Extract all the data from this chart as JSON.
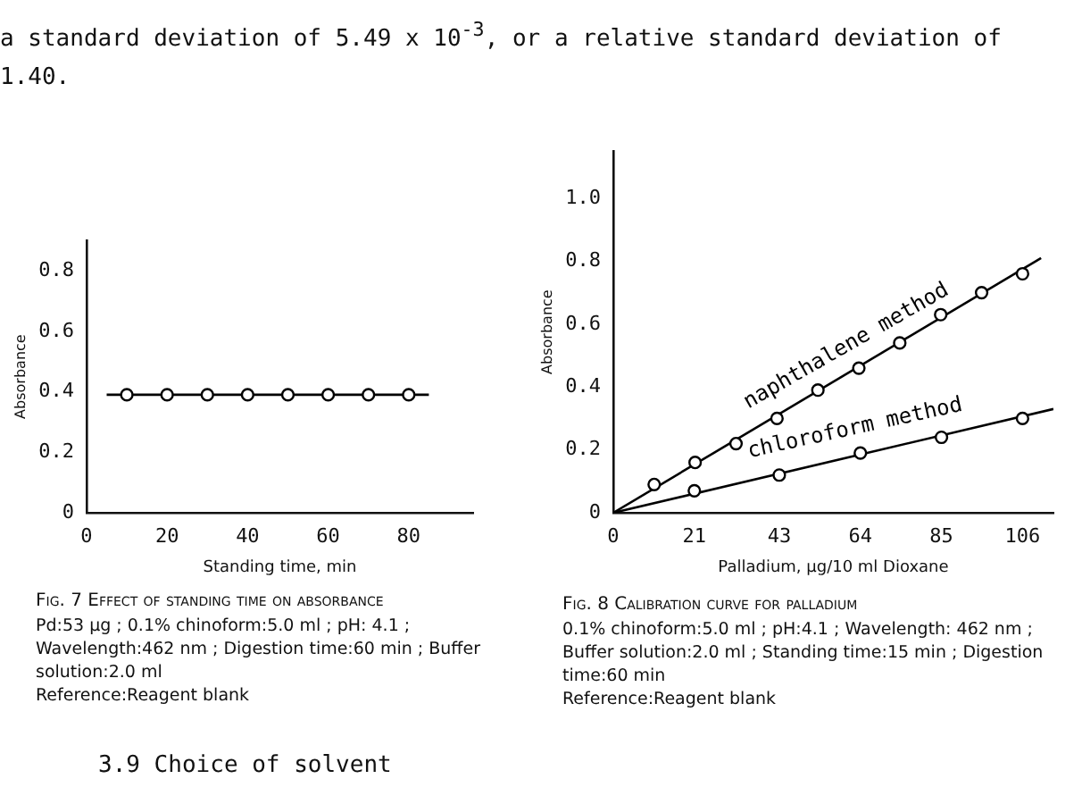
{
  "chart_data": [
    {
      "type": "scatter",
      "title": "Fig. 7 Effect of standing time on absorbance",
      "subtitle": "Pd:53 μg ; 0.1% chinoform:5.0 ml ; pH: 4.1 ; Wavelength:462 nm ; Digestion time:60 min ; Buffer solution:2.0 ml\nReference:Reagent blank",
      "xlabel": "Standing time, min",
      "ylabel": "Absorbance",
      "annotations": [
        "a standard deviation of 5.49 x 10$^{-3}$, or a relative standard deviation of 1.40.",
        "3.9 Choice of solvent"
      ],
      "xlim": [
        0,
        96
      ],
      "xticks": [
        0,
        20,
        40,
        60,
        80
      ],
      "ylim": [
        0,
        0.9
      ],
      "yticks": [
        0,
        0.2,
        0.4,
        0.6,
        0.8
      ],
      "grid": false,
      "legend": false,
      "marker": "circle",
      "series": [
        {
          "type": "line",
          "color": "#000000",
          "marker": "none",
          "x": [
            5,
            85
          ],
          "values": [
            0.39,
            0.39
          ]
        },
        {
          "type": "scatter",
          "color": "#000000",
          "x": [
            10,
            20,
            30,
            40,
            50,
            60,
            70,
            80
          ],
          "values": [
            0.39,
            0.39,
            0.39,
            0.39,
            0.39,
            0.39,
            0.39,
            0.39
          ]
        }
      ]
    },
    {
      "type": "scatter",
      "title": "Fig. 8 Calibration curve for palladium",
      "subtitle": "0.1% chinoform:5.0 ml ; pH:4.1 ; Wavelength: 462 nm ; Buffer solution:2.0 ml ; Standing time:15 min ; Digestion time:60 min\nReference:Reagent blank",
      "xlabel": "Palladium, μg/10 ml Dioxane",
      "ylabel": "Absorbance",
      "xlim": [
        0,
        114
      ],
      "xticks": [
        0,
        21,
        43,
        64,
        85,
        106
      ],
      "ylim": [
        0,
        1.15
      ],
      "yticks": [
        0,
        0.2,
        0.4,
        0.6,
        0.8,
        {
          "value": 1,
          "label": "1.0"
        }
      ],
      "grid": false,
      "legend": false,
      "marker": "circle",
      "series": [
        {
          "type": "line",
          "color": "#000000",
          "marker": "none",
          "x": [
            0,
            110.8
          ],
          "values": [
            0,
            0.81
          ]
        },
        {
          "type": "line",
          "color": "#000000",
          "marker": "none",
          "x": [
            0,
            114
          ],
          "values": [
            0,
            0.33
          ]
        },
        {
          "type": "scatter",
          "name": "naphthalene method",
          "color": "#000000",
          "x": [
            10.6,
            21.2,
            31.8,
            42.4,
            53,
            63.6,
            74.2,
            84.8,
            95.4,
            106
          ],
          "values": [
            0.09,
            0.16,
            0.22,
            0.3,
            0.39,
            0.46,
            0.54,
            0.63,
            0.7,
            0.76
          ]
        },
        {
          "type": "scatter",
          "name": "chloroform method",
          "color": "#000000",
          "x": [
            21,
            43,
            64,
            85,
            106
          ],
          "values": [
            0.07,
            0.12,
            0.19,
            0.24,
            0.3
          ]
        }
      ]
    }
  ]
}
